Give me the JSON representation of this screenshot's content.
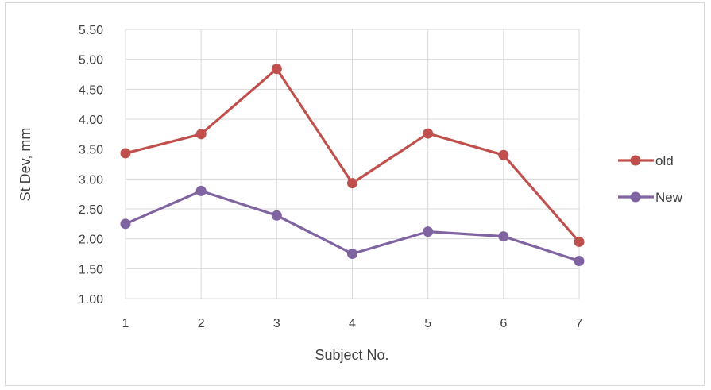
{
  "chart_data": {
    "type": "line",
    "title": "",
    "xlabel": "Subject No.",
    "ylabel": "St Dev, mm",
    "categories": [
      "1",
      "2",
      "3",
      "4",
      "5",
      "6",
      "7"
    ],
    "ylim": [
      1.0,
      5.5
    ],
    "yticks": [
      "1.00",
      "1.50",
      "2.00",
      "2.50",
      "3.00",
      "3.50",
      "4.00",
      "4.50",
      "5.00",
      "5.50"
    ],
    "grid": "vertical and horizontal",
    "legend_position": "right",
    "series": [
      {
        "name": "old",
        "color": "#c0504d",
        "values": [
          3.43,
          3.75,
          4.84,
          2.93,
          3.76,
          3.4,
          1.95
        ]
      },
      {
        "name": "New",
        "color": "#8064a2",
        "values": [
          2.25,
          2.8,
          2.39,
          1.75,
          2.12,
          2.04,
          1.63
        ]
      }
    ]
  }
}
